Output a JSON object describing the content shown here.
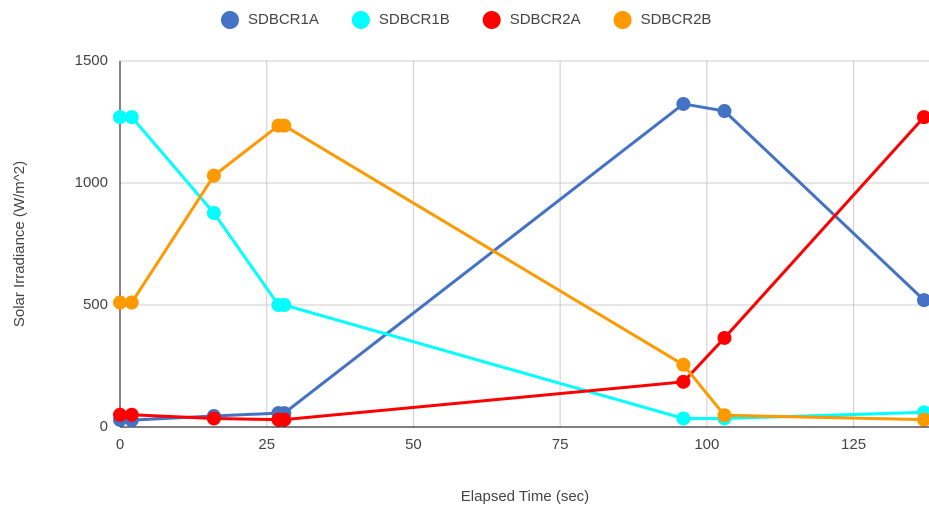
{
  "chart_data": {
    "type": "line",
    "x_label": "Elapsed Time (sec)",
    "y_label": "Solar Irradiance (W/m^2)",
    "x": [
      0,
      2,
      16,
      27,
      28,
      96,
      103,
      137
    ],
    "series": [
      {
        "name": "SDBCR1A",
        "color": "#4472c4",
        "values": [
          29,
          28,
          45,
          57,
          57,
          1324,
          1295,
          520
        ]
      },
      {
        "name": "SDBCR1B",
        "color": "#00ffff",
        "values": [
          1270,
          1270,
          877,
          500,
          500,
          35,
          35,
          60
        ]
      },
      {
        "name": "SDBCR2A",
        "color": "#ff0000",
        "values": [
          50,
          50,
          35,
          30,
          30,
          185,
          365,
          1270
        ]
      },
      {
        "name": "SDBCR2B",
        "color": "#ff9900",
        "values": [
          510,
          510,
          1030,
          1235,
          1235,
          255,
          48,
          30
        ]
      }
    ],
    "xlim": [
      0,
      137
    ],
    "xticks": [
      0,
      25,
      50,
      75,
      100,
      125
    ],
    "ylim": [
      0,
      1500
    ],
    "yticks": [
      0,
      500,
      1000,
      1500
    ],
    "grid": true,
    "legend": "top"
  }
}
